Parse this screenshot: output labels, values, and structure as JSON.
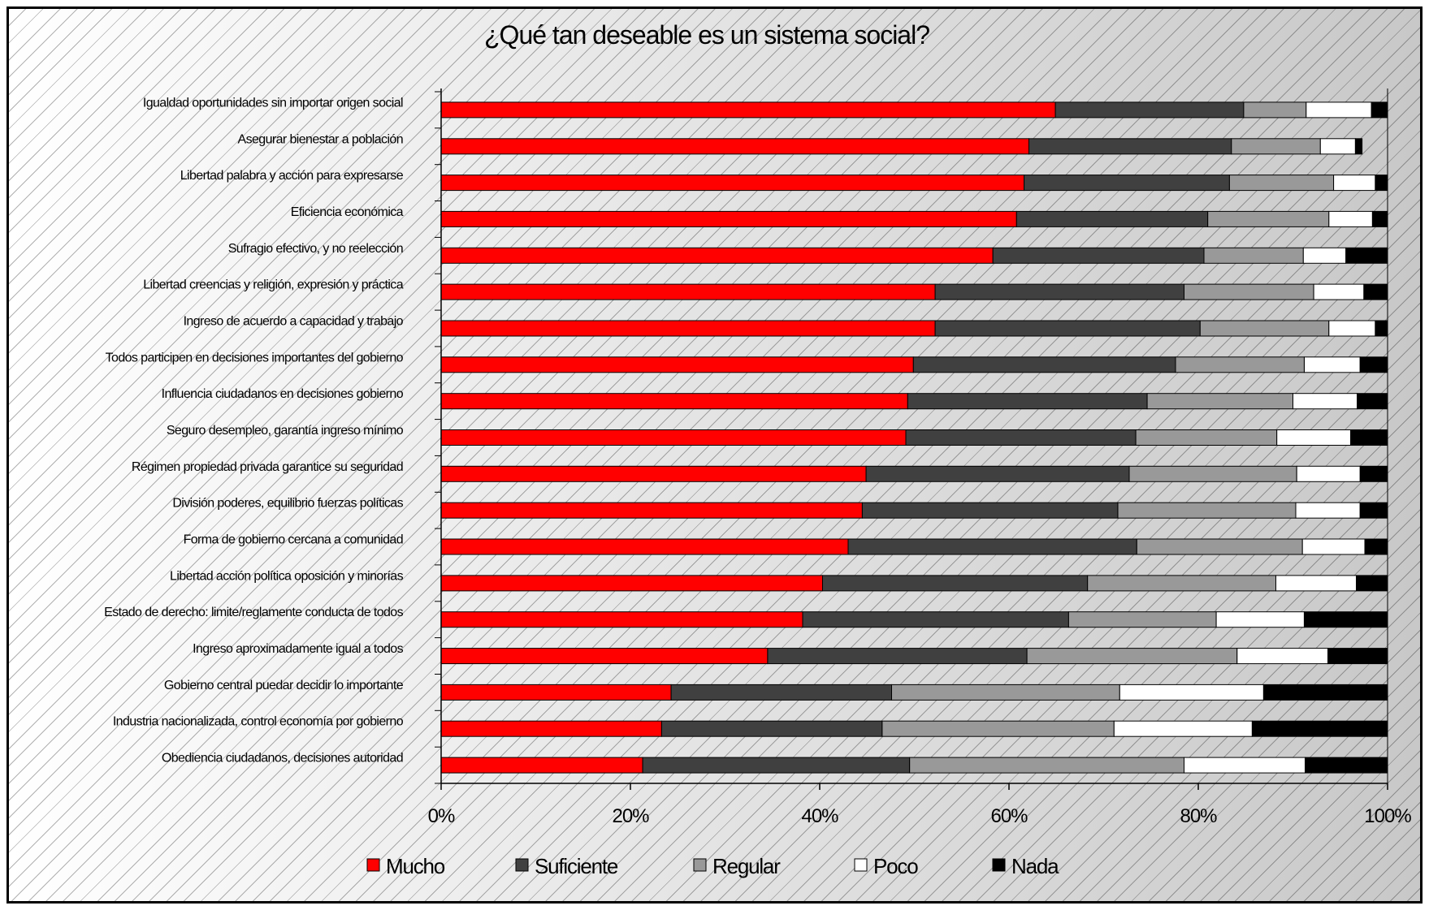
{
  "chart_data": {
    "type": "bar",
    "orientation": "horizontal",
    "stacked": "percent",
    "title": "¿Qué tan deseable es un sistema social?",
    "categories": [
      "Igualdad oportunidades sin importar origen social",
      "Asegurar bienestar a población",
      "Libertad palabra y acción para expresarse",
      "Eficiencia económica",
      "Sufragio  efectivo, y no reelección",
      "Libertad creencias y religión, expresión y práctica",
      "Ingreso de acuerdo a capacidad y trabajo",
      "Todos participen en decisiones importantes del gobierno",
      "Influencia ciudadanos en decisiones gobierno",
      "Seguro desempleo, garantía ingreso mínimo",
      "Régimen propiedad privada garantice su seguridad",
      "División poderes, equilibrio fuerzas políticas",
      "Forma  de gobierno cercana a comunidad",
      "Libertad acción política oposición y minorías",
      "Estado de derecho: limite/reglamente conducta de todos",
      "Ingreso aproximadamente igual a todos",
      "Gobierno central puedar decidir lo importante",
      "Industria  nacionalizada, control economía por gobierno",
      "Obediencia ciudadanos, decisiones autoridad"
    ],
    "series": [
      {
        "name": "Mucho",
        "color": "#ff0000",
        "values": [
          64.9,
          62.1,
          61.6,
          60.8,
          58.3,
          52.2,
          52.2,
          49.9,
          49.3,
          49.1,
          44.9,
          44.5,
          43.0,
          40.3,
          38.2,
          34.5,
          24.3,
          23.3,
          21.3
        ]
      },
      {
        "name": "Suficiente",
        "color": "#404040",
        "values": [
          19.9,
          21.4,
          21.7,
          20.2,
          22.3,
          26.3,
          28.0,
          27.7,
          25.3,
          24.3,
          27.8,
          27.0,
          30.5,
          28.0,
          28.1,
          27.4,
          23.3,
          23.3,
          28.2
        ]
      },
      {
        "name": "Regular",
        "color": "#999999",
        "values": [
          6.6,
          9.4,
          11.0,
          12.8,
          10.5,
          13.7,
          13.6,
          13.6,
          15.4,
          14.9,
          17.7,
          18.8,
          17.5,
          19.9,
          15.6,
          22.2,
          24.1,
          24.5,
          29.0
        ]
      },
      {
        "name": "Poco",
        "color": "#ffffff",
        "values": [
          6.9,
          3.7,
          4.4,
          4.6,
          4.5,
          5.3,
          4.9,
          5.9,
          6.8,
          7.8,
          6.7,
          6.8,
          6.6,
          8.5,
          9.3,
          9.6,
          15.2,
          14.6,
          12.8
        ]
      },
      {
        "name": "Nada",
        "color": "#000000",
        "values": [
          1.7,
          0.7,
          1.3,
          1.6,
          4.4,
          2.5,
          1.3,
          2.9,
          3.2,
          3.9,
          2.9,
          2.9,
          2.4,
          3.3,
          8.8,
          6.3,
          13.1,
          14.3,
          8.7
        ]
      }
    ],
    "x_ticks": [
      "0%",
      "20%",
      "40%",
      "60%",
      "80%",
      "100%"
    ],
    "xlim": [
      0,
      100
    ],
    "grid": false,
    "legend_position": "bottom"
  }
}
